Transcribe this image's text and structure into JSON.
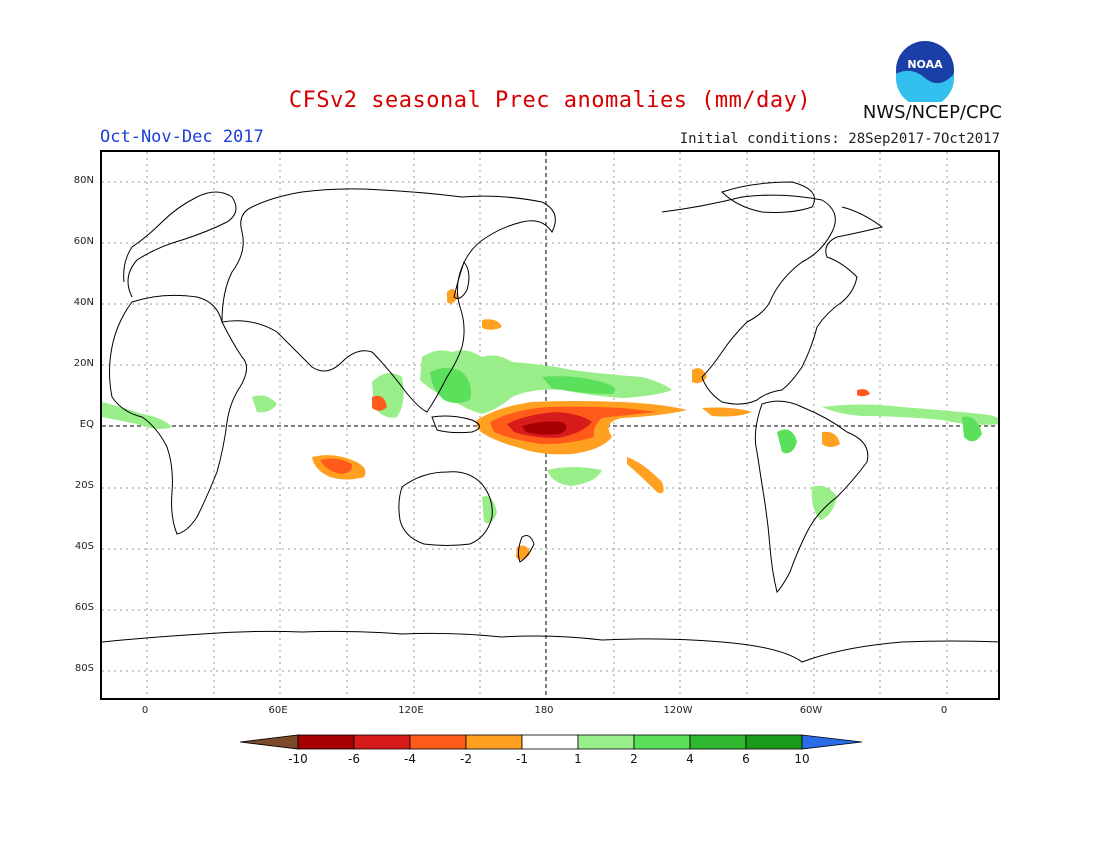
{
  "title": "CFSv2 seasonal Prec anomalies (mm/day)",
  "season": "Oct-Nov-Dec 2017",
  "initial_conditions": "Initial conditions: 28Sep2017-7Oct2017",
  "organization": "NWS/NCEP/CPC",
  "logo_text": "NOAA",
  "colors": {
    "title": "#d40000",
    "season": "#1a3fd6",
    "coast": "#000000",
    "grid": "#9a9a9a",
    "dry_light": "#ffa020",
    "dry_mid": "#ff5a1a",
    "dry_strong": "#d81b1b",
    "dry_extreme": "#a60000",
    "wet_light": "#99ee8a",
    "wet_mid": "#5ae05a",
    "wet_strong": "#30b830",
    "wet_extreme": "#1a9a1a"
  },
  "lat_labels": [
    "80N",
    "60N",
    "40N",
    "20N",
    "EQ",
    "20S",
    "40S",
    "60S",
    "80S"
  ],
  "lon_labels": [
    "0",
    "60E",
    "120E",
    "180",
    "120W",
    "60W",
    "0"
  ],
  "legend": {
    "labels": [
      "-10",
      "-6",
      "-4",
      "-2",
      "-1",
      "1",
      "2",
      "4",
      "6",
      "10"
    ],
    "colors": [
      "#7a4a2a",
      "#a60000",
      "#d81b1b",
      "#ff5a1a",
      "#ffa020",
      "#ffffff",
      "#99ee8a",
      "#5ae05a",
      "#30b830",
      "#1a9a1a",
      "#2a6be8"
    ]
  }
}
